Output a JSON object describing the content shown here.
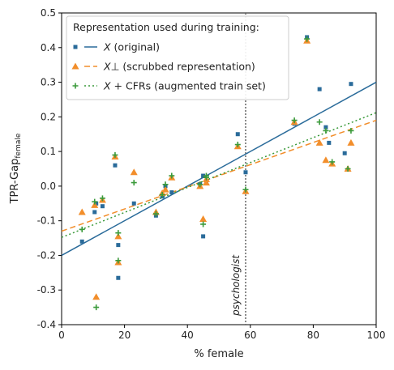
{
  "chart_data": {
    "type": "scatter",
    "xlabel": "% female",
    "ylabel": "TPR-Gap",
    "ylabel_subscript": "female",
    "xlim": [
      0,
      100
    ],
    "ylim": [
      -0.4,
      0.5
    ],
    "x_ticks": [
      0,
      20,
      40,
      60,
      80,
      100
    ],
    "y_ticks": [
      -0.4,
      -0.3,
      -0.2,
      -0.1,
      0.0,
      0.1,
      0.2,
      0.3,
      0.4,
      0.5
    ],
    "grid": false,
    "legend": {
      "title": "Representation used during training:",
      "placement": "top-left",
      "entries": [
        {
          "var": "X",
          "desc": " (original)"
        },
        {
          "var": "X⊥",
          "desc": " (scrubbed representation)"
        },
        {
          "var": "X",
          "desc": " + CFRs (augmented train set)"
        }
      ]
    },
    "annotation": {
      "text": "psychologist",
      "x": 58.5
    },
    "colors": {
      "original": "#2a6b9a",
      "scrubbed": "#f28e2b",
      "augmented": "#3a9a3a",
      "guide": "#666666"
    },
    "series": [
      {
        "key": "original",
        "marker": "square",
        "line_style": "solid",
        "trend": {
          "intercept": -0.2,
          "slope": 0.005
        },
        "points": [
          [
            6.5,
            -0.16
          ],
          [
            10.5,
            -0.075
          ],
          [
            11,
            -0.05
          ],
          [
            13,
            -0.058
          ],
          [
            17,
            0.06
          ],
          [
            18,
            -0.17
          ],
          [
            18,
            -0.265
          ],
          [
            23,
            -0.05
          ],
          [
            30,
            -0.085
          ],
          [
            32,
            -0.03
          ],
          [
            33,
            0.0
          ],
          [
            35,
            -0.018
          ],
          [
            44,
            0.005
          ],
          [
            45,
            -0.145
          ],
          [
            45,
            0.03
          ],
          [
            46,
            0.01
          ],
          [
            56,
            0.15
          ],
          [
            58.5,
            0.04
          ],
          [
            74,
            0.18
          ],
          [
            78,
            0.43
          ],
          [
            82,
            0.28
          ],
          [
            84,
            0.17
          ],
          [
            85,
            0.125
          ],
          [
            90,
            0.095
          ],
          [
            92,
            0.295
          ]
        ]
      },
      {
        "key": "scrubbed",
        "marker": "triangle",
        "line_style": "dashed",
        "trend": {
          "intercept": -0.13,
          "slope": 0.0032
        },
        "points": [
          [
            6.5,
            -0.075
          ],
          [
            10.5,
            -0.055
          ],
          [
            11,
            -0.32
          ],
          [
            13,
            -0.04
          ],
          [
            17,
            0.085
          ],
          [
            18,
            -0.145
          ],
          [
            18,
            -0.22
          ],
          [
            23,
            0.04
          ],
          [
            30,
            -0.075
          ],
          [
            32,
            -0.02
          ],
          [
            33,
            -0.01
          ],
          [
            35,
            0.025
          ],
          [
            44,
            0.0
          ],
          [
            45,
            -0.095
          ],
          [
            46,
            0.01
          ],
          [
            46,
            0.02
          ],
          [
            56,
            0.115
          ],
          [
            58.5,
            -0.015
          ],
          [
            74,
            0.185
          ],
          [
            78,
            0.42
          ],
          [
            82,
            0.125
          ],
          [
            84,
            0.075
          ],
          [
            86,
            0.065
          ],
          [
            91,
            0.05
          ],
          [
            92,
            0.125
          ]
        ]
      },
      {
        "key": "augmented",
        "marker": "plus",
        "line_style": "dotted",
        "trend": {
          "intercept": -0.148,
          "slope": 0.0036
        },
        "points": [
          [
            6.5,
            -0.125
          ],
          [
            10.5,
            -0.045
          ],
          [
            11,
            -0.35
          ],
          [
            13,
            -0.035
          ],
          [
            17,
            0.09
          ],
          [
            18,
            -0.135
          ],
          [
            18,
            -0.215
          ],
          [
            23,
            0.01
          ],
          [
            30,
            -0.08
          ],
          [
            32,
            -0.025
          ],
          [
            33,
            0.005
          ],
          [
            35,
            0.03
          ],
          [
            44,
            0.005
          ],
          [
            45,
            -0.11
          ],
          [
            46,
            0.03
          ],
          [
            46,
            0.025
          ],
          [
            56,
            0.12
          ],
          [
            58.5,
            -0.01
          ],
          [
            74,
            0.19
          ],
          [
            78,
            0.425
          ],
          [
            82,
            0.185
          ],
          [
            84,
            0.16
          ],
          [
            86,
            0.07
          ],
          [
            91,
            0.05
          ],
          [
            92,
            0.16
          ]
        ]
      }
    ]
  }
}
